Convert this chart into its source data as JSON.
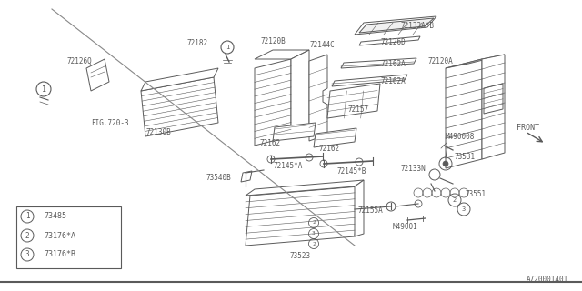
{
  "bg_color": "#ffffff",
  "line_color": "#5a5a5a",
  "fig_id": "A720001401",
  "legend": [
    {
      "num": "1",
      "code": "73485"
    },
    {
      "num": "2",
      "code": "73176*A"
    },
    {
      "num": "3",
      "code": "73176*B"
    }
  ]
}
